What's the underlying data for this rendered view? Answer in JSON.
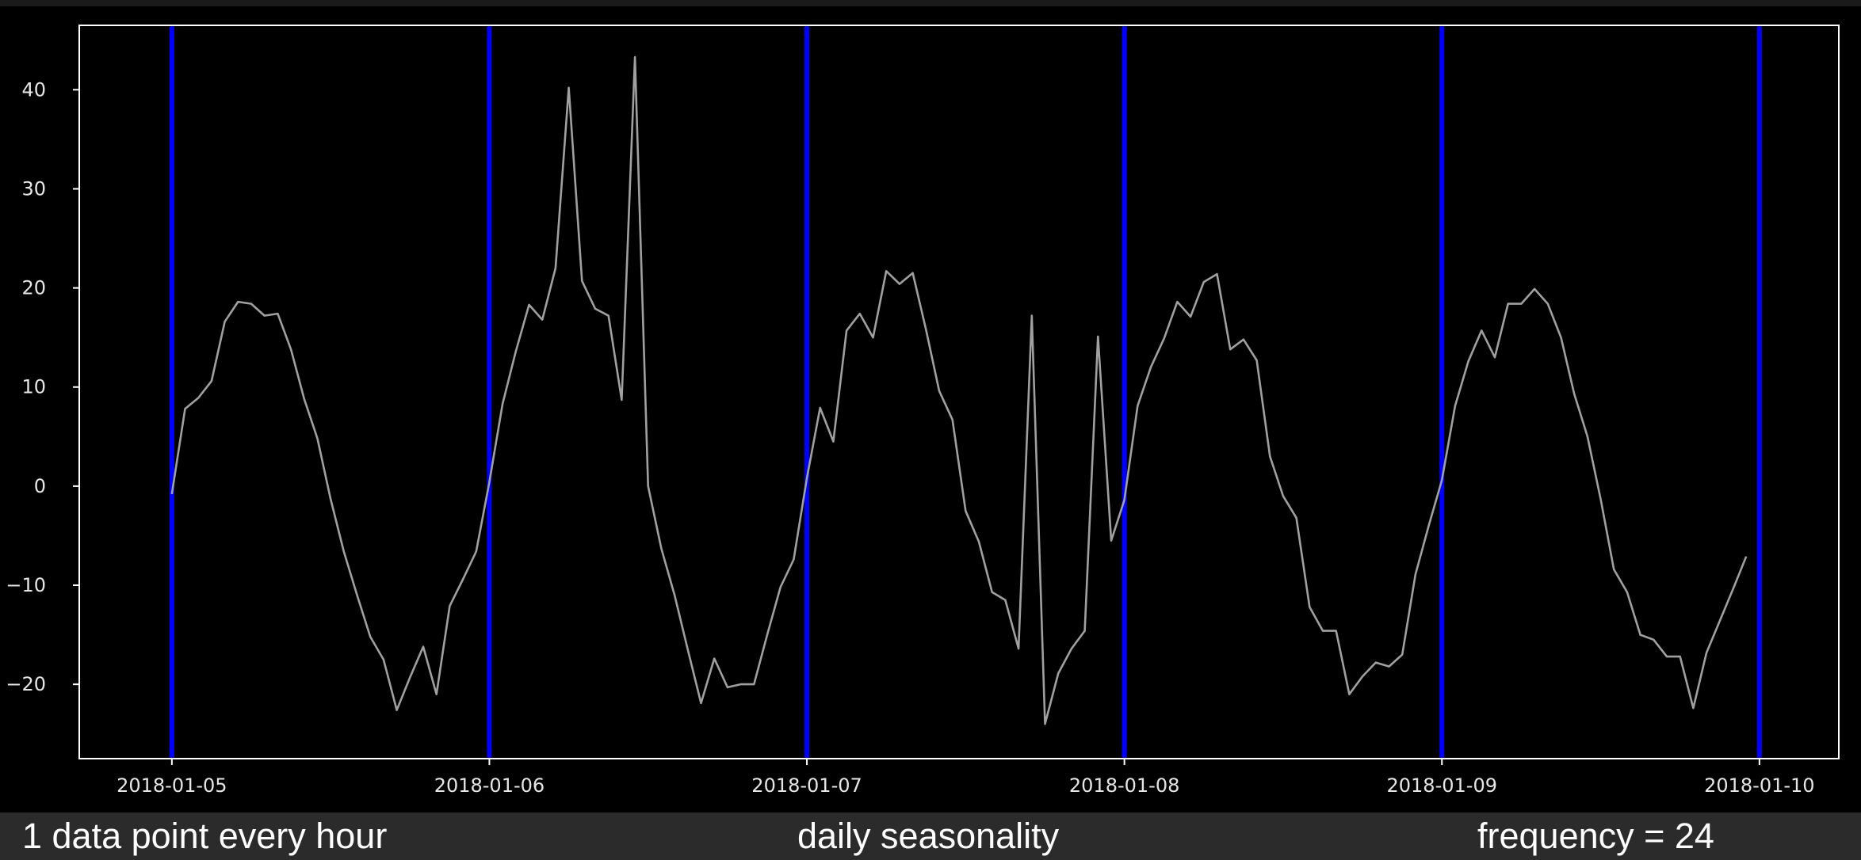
{
  "chart_data": {
    "type": "line",
    "x_start": "2018-01-05 00:00",
    "x_step": "1 hour",
    "xlim": [
      "2018-01-04 17:00",
      "2018-01-10 06:00"
    ],
    "ylim": [
      -27.5,
      46.5
    ],
    "x_ticks": [
      "2018-01-05",
      "2018-01-06",
      "2018-01-07",
      "2018-01-08",
      "2018-01-09",
      "2018-01-10"
    ],
    "y_ticks": [
      40,
      30,
      20,
      10,
      0,
      -10,
      -20
    ],
    "vertical_lines": [
      "2018-01-05",
      "2018-01-06",
      "2018-01-07",
      "2018-01-08",
      "2018-01-09",
      "2018-01-10"
    ],
    "series": [
      {
        "color": "#a0a0a0",
        "values": [
          -0.8,
          7.8,
          8.9,
          10.6,
          16.6,
          18.6,
          18.4,
          17.2,
          17.4,
          13.8,
          8.8,
          4.8,
          -1.3,
          -6.6,
          -11.0,
          -15.2,
          -17.5,
          -22.6,
          -19.3,
          -16.2,
          -21.0,
          -12.1,
          -9.4,
          -6.6,
          0.4,
          8.3,
          13.6,
          18.3,
          16.8,
          22.0,
          40.2,
          20.7,
          17.9,
          17.2,
          8.7,
          43.3,
          0.0,
          -6.3,
          -11.0,
          -16.5,
          -21.9,
          -17.4,
          -20.3,
          -20.0,
          -20.0,
          -15.0,
          -10.2,
          -7.4,
          0.8,
          7.9,
          4.5,
          15.7,
          17.4,
          15.0,
          21.7,
          20.4,
          21.5,
          15.8,
          9.6,
          6.7,
          -2.5,
          -5.6,
          -10.7,
          -11.5,
          -16.4,
          17.2,
          -24.0,
          -18.9,
          -16.4,
          -14.6,
          15.1,
          -5.5,
          -1.4,
          8.1,
          12.0,
          14.9,
          18.6,
          17.1,
          20.6,
          21.4,
          13.8,
          14.8,
          12.7,
          3.0,
          -1.0,
          -3.2,
          -12.2,
          -14.6,
          -14.6,
          -21.0,
          -19.2,
          -17.8,
          -18.2,
          -17.0,
          -8.9,
          -4.0,
          0.6,
          8.1,
          12.6,
          15.7,
          13.0,
          18.4,
          18.4,
          19.9,
          18.4,
          15.0,
          9.3,
          5.0,
          -1.3,
          -8.4,
          -10.7,
          -15.0,
          -15.5,
          -17.2,
          -17.2,
          -22.4,
          -16.8,
          -13.6,
          -10.4,
          -7.1
        ]
      }
    ]
  },
  "captions": {
    "left": "1 data point every hour",
    "center": "daily seasonality",
    "right": "frequency = 24"
  },
  "colors": {
    "line": "#a0a0a0",
    "vertical_line": "#0000ff",
    "axes": "#ffffff",
    "background": "#000000",
    "caption_bar": "#2b2b2b"
  }
}
